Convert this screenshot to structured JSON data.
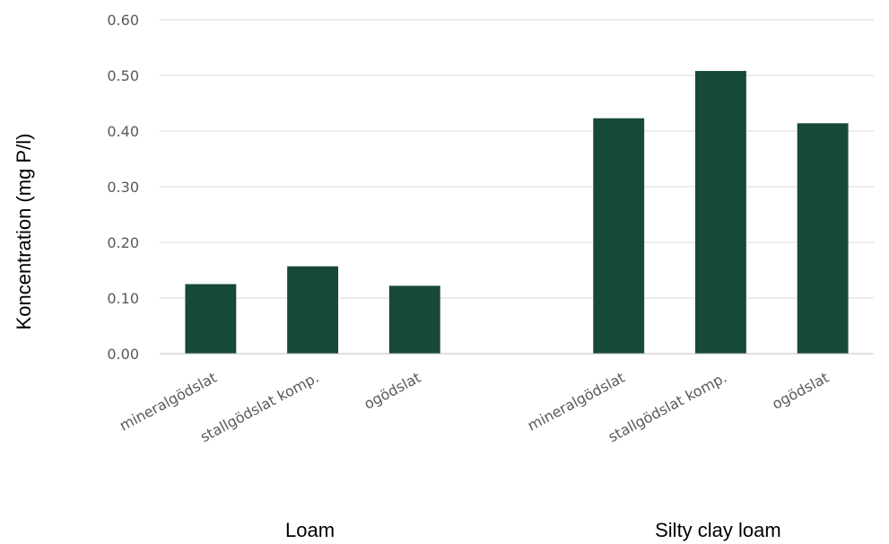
{
  "chart_data": {
    "type": "bar",
    "title": "",
    "ylabel": "Koncentration (mg P/l)",
    "xlabel": "",
    "ylim": [
      0,
      0.6
    ],
    "yticks": [
      "0.00",
      "0.10",
      "0.20",
      "0.30",
      "0.40",
      "0.50",
      "0.60"
    ],
    "grid": true,
    "legend": "none",
    "bar_color": "#17493A",
    "gridline_color": "#D9D9D9",
    "axis_color": "#BFBFBF",
    "groups": [
      {
        "label": "Loam",
        "categories": [
          "mineralgödslat",
          "stallgödslat komp.",
          "ogödslat"
        ],
        "values": [
          0.125,
          0.157,
          0.122
        ]
      },
      {
        "label": "Silty clay loam",
        "categories": [
          "mineralgödslat",
          "stallgödslat komp.",
          "ogödslat"
        ],
        "values": [
          0.423,
          0.508,
          0.414
        ]
      }
    ]
  }
}
